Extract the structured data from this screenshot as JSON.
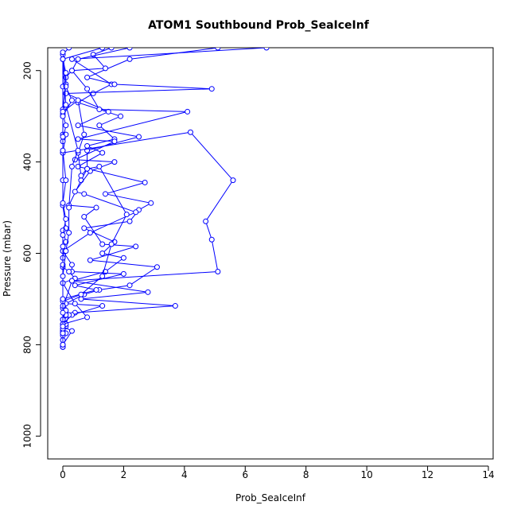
{
  "chart_data": {
    "type": "line",
    "title": "ATOM1 Southbound Prob_SeaIceInf",
    "xlabel": "Prob_SeaIceInf",
    "ylabel": "Pressure (mbar)",
    "xlim": [
      0,
      14
    ],
    "ylim": [
      1050,
      150
    ],
    "x_ticks": [
      0,
      2,
      4,
      6,
      8,
      10,
      12,
      14
    ],
    "y_ticks": [
      200,
      400,
      600,
      800,
      1000
    ],
    "y_reversed": true,
    "grid": false,
    "color": "#0000ff",
    "series": [
      {
        "values": [
          [
            6.7,
            150
          ],
          [
            0.3,
            175
          ],
          [
            1.6,
            230
          ],
          [
            1.0,
            250
          ],
          [
            0.5,
            270
          ],
          [
            1.9,
            300
          ],
          [
            1.2,
            320
          ],
          [
            1.7,
            350
          ],
          [
            0.8,
            365
          ],
          [
            1.3,
            380
          ],
          [
            0.5,
            410
          ],
          [
            2.7,
            445
          ],
          [
            1.4,
            470
          ],
          [
            2.9,
            490
          ],
          [
            2.5,
            505
          ],
          [
            2.2,
            530
          ],
          [
            0.7,
            545
          ],
          [
            1.7,
            575
          ],
          [
            1.3,
            600
          ],
          [
            2.0,
            610
          ],
          [
            1.4,
            640
          ],
          [
            0.3,
            660
          ],
          [
            2.8,
            685
          ],
          [
            0.6,
            700
          ],
          [
            3.7,
            715
          ],
          [
            0.4,
            730
          ],
          [
            0.0,
            745
          ],
          [
            0.1,
            760
          ],
          [
            0.0,
            770
          ],
          [
            0.0,
            790
          ],
          [
            0.0,
            805
          ]
        ]
      },
      {
        "values": [
          [
            5.1,
            150
          ],
          [
            2.2,
            175
          ],
          [
            0.8,
            215
          ],
          [
            1.7,
            230
          ],
          [
            4.9,
            240
          ],
          [
            0.1,
            250
          ],
          [
            1.5,
            290
          ],
          [
            0.5,
            320
          ],
          [
            2.5,
            345
          ],
          [
            0.8,
            375
          ],
          [
            0.8,
            415
          ],
          [
            0.6,
            440
          ],
          [
            0.2,
            495
          ],
          [
            1.1,
            500
          ],
          [
            0.7,
            520
          ],
          [
            1.3,
            580
          ],
          [
            2.4,
            585
          ],
          [
            0.9,
            615
          ],
          [
            3.1,
            630
          ],
          [
            2.2,
            670
          ],
          [
            1.2,
            680
          ],
          [
            0.7,
            690
          ],
          [
            0.1,
            710
          ],
          [
            1.3,
            715
          ],
          [
            0.3,
            735
          ],
          [
            0.0,
            755
          ],
          [
            0.0,
            770
          ],
          [
            0.0,
            805
          ]
        ]
      },
      {
        "values": [
          [
            1.6,
            150
          ],
          [
            1.0,
            165
          ],
          [
            1.4,
            195
          ],
          [
            0.3,
            200
          ],
          [
            0.8,
            240
          ],
          [
            1.2,
            285
          ],
          [
            4.1,
            290
          ],
          [
            0.5,
            350
          ],
          [
            1.7,
            355
          ],
          [
            0.4,
            395
          ],
          [
            1.7,
            400
          ],
          [
            0.9,
            420
          ],
          [
            0.4,
            465
          ],
          [
            0.7,
            470
          ],
          [
            2.4,
            510
          ],
          [
            0.9,
            555
          ],
          [
            0.0,
            595
          ],
          [
            0.3,
            625
          ],
          [
            0.3,
            640
          ],
          [
            2.0,
            645
          ],
          [
            0.4,
            670
          ],
          [
            1.1,
            680
          ],
          [
            0.0,
            700
          ],
          [
            0.2,
            735
          ],
          [
            0.1,
            755
          ],
          [
            0.0,
            775
          ],
          [
            0.0,
            805
          ]
        ]
      },
      {
        "values": [
          [
            0.2,
            150
          ],
          [
            0.0,
            165
          ],
          [
            0.0,
            175
          ],
          [
            0.0,
            235
          ],
          [
            0.0,
            285
          ],
          [
            0.0,
            300
          ],
          [
            0.0,
            340
          ],
          [
            0.1,
            340
          ],
          [
            0.0,
            380
          ],
          [
            0.0,
            440
          ],
          [
            0.0,
            495
          ],
          [
            0.1,
            545
          ],
          [
            0.0,
            550
          ],
          [
            0.1,
            575
          ],
          [
            0.0,
            610
          ],
          [
            0.0,
            630
          ],
          [
            0.2,
            640
          ],
          [
            0.4,
            655
          ],
          [
            0.0,
            665
          ],
          [
            0.4,
            710
          ],
          [
            0.8,
            740
          ],
          [
            0.0,
            755
          ],
          [
            0.0,
            770
          ],
          [
            0.1,
            775
          ],
          [
            0.0,
            780
          ]
        ]
      },
      {
        "values": [
          [
            2.2,
            150
          ],
          [
            0.5,
            175
          ],
          [
            0.3,
            200
          ],
          [
            0.1,
            215
          ],
          [
            0.0,
            295
          ],
          [
            0.1,
            320
          ],
          [
            0.0,
            355
          ],
          [
            0.0,
            380
          ],
          [
            4.2,
            335
          ],
          [
            5.6,
            440
          ],
          [
            4.7,
            530
          ],
          [
            4.9,
            570
          ],
          [
            5.1,
            640
          ],
          [
            0.3,
            660
          ],
          [
            0.0,
            720
          ],
          [
            0.0,
            745
          ],
          [
            0.0,
            775
          ],
          [
            0.0,
            805
          ]
        ]
      },
      {
        "values": [
          [
            0.0,
            160
          ],
          [
            0.1,
            230
          ],
          [
            0.0,
            290
          ],
          [
            0.5,
            265
          ],
          [
            0.7,
            340
          ],
          [
            0.5,
            380
          ],
          [
            0.6,
            430
          ],
          [
            0.8,
            415
          ],
          [
            1.2,
            410
          ],
          [
            2.1,
            515
          ],
          [
            1.6,
            580
          ],
          [
            1.3,
            650
          ],
          [
            0.6,
            690
          ],
          [
            0.0,
            705
          ],
          [
            0.1,
            735
          ],
          [
            0.0,
            755
          ],
          [
            0.0,
            770
          ]
        ]
      },
      {
        "values": [
          [
            1.3,
            150
          ],
          [
            0.0,
            175
          ],
          [
            0.1,
            205
          ],
          [
            0.1,
            235
          ],
          [
            0.3,
            265
          ],
          [
            0.0,
            300
          ],
          [
            0.0,
            345
          ],
          [
            0.0,
            375
          ],
          [
            0.1,
            440
          ],
          [
            0.0,
            490
          ],
          [
            0.1,
            525
          ],
          [
            0.0,
            560
          ],
          [
            0.0,
            585
          ],
          [
            0.0,
            625
          ],
          [
            0.0,
            665
          ],
          [
            0.0,
            715
          ],
          [
            0.1,
            725
          ],
          [
            0.0,
            745
          ],
          [
            0.0,
            765
          ],
          [
            0.0,
            775
          ],
          [
            0.0,
            800
          ]
        ]
      },
      {
        "values": [
          [
            0.0,
            175
          ],
          [
            0.1,
            275
          ],
          [
            0.5,
            375
          ],
          [
            0.3,
            410
          ],
          [
            0.2,
            500
          ],
          [
            0.2,
            555
          ],
          [
            0.1,
            595
          ],
          [
            0.0,
            650
          ],
          [
            0.0,
            700
          ],
          [
            0.0,
            730
          ],
          [
            0.0,
            760
          ],
          [
            0.3,
            770
          ],
          [
            0.0,
            800
          ]
        ]
      }
    ]
  }
}
